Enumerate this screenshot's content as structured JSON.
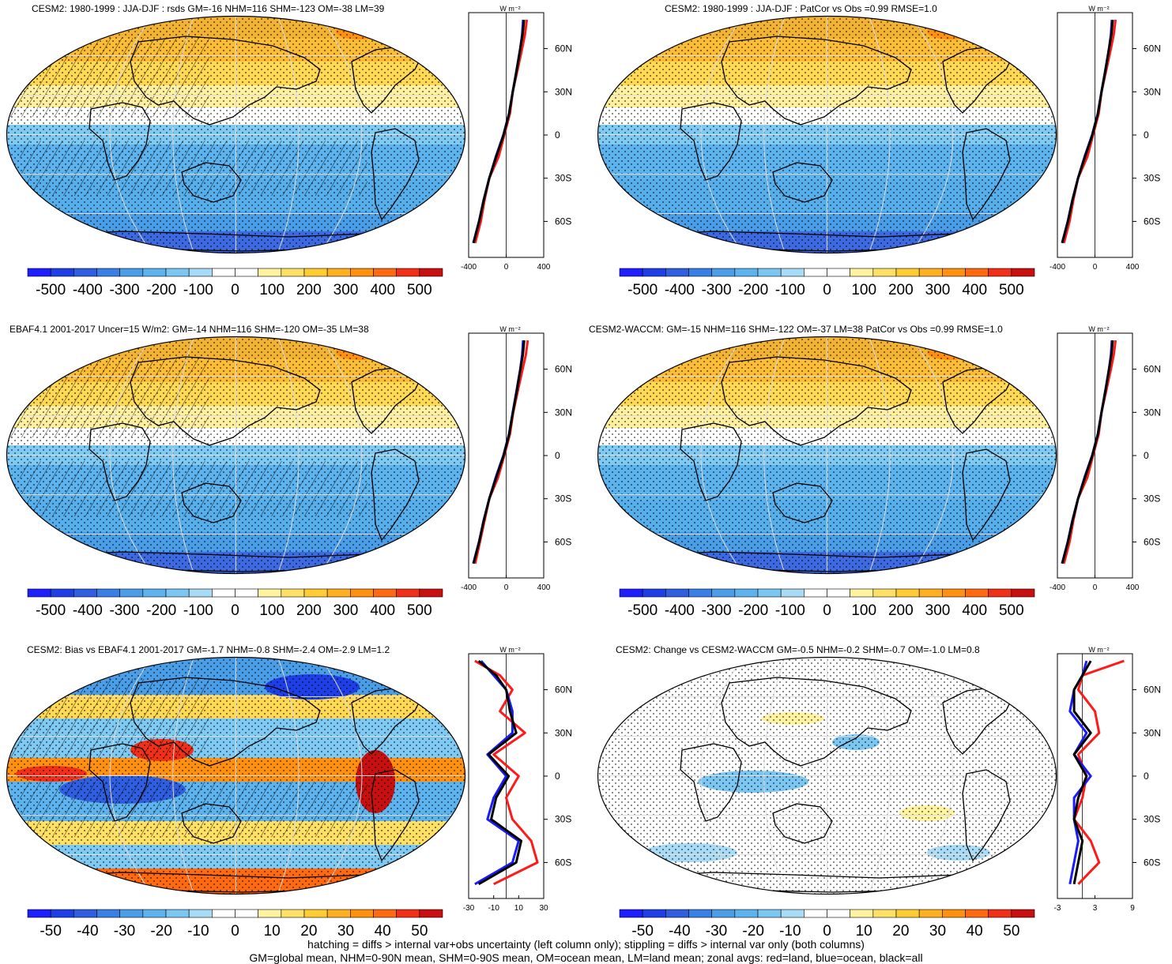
{
  "footer": {
    "line1": "hatching = diffs > internal var+obs uncertainty (left column only); stippling = diffs > internal var only (both columns)",
    "line2": "GM=global mean, NHM=0-90N mean, SHM=0-90S mean, OM=ocean mean, LM=land mean; zonal avgs: red=land, blue=ocean, black=all"
  },
  "colors": {
    "land_line": "#ff1a1a",
    "ocean_line": "#1a1aff",
    "all_line": "#000000",
    "scale": [
      "#1e1eff",
      "#1f3fe6",
      "#2f5fe0",
      "#3a7fe6",
      "#4a9ee8",
      "#5cb3ee",
      "#7cc6f2",
      "#a8dcf6",
      "#ffffff",
      "#ffffff",
      "#fff3a0",
      "#ffe066",
      "#ffcc33",
      "#ffb020",
      "#ff9010",
      "#ff6a10",
      "#f03018",
      "#c81010"
    ]
  },
  "panels": [
    {
      "title": "CESM2: 1980-1999 : JJA-DJF : rsds GM=-16 NHM=116 SHM=-123 OM=-38 LM=39",
      "unit": "W m⁻²",
      "colorbar_labels": [
        "-500",
        "-400",
        "-300",
        "-200",
        "-100",
        "0",
        "100",
        "200",
        "300",
        "400",
        "500"
      ],
      "zonal_xticks": [
        "-400",
        "0",
        "400"
      ],
      "lat_labels": [
        "60N",
        "30N",
        "0",
        "30S",
        "60S"
      ]
    },
    {
      "title": "CESM2: 1980-1999 : JJA-DJF : PatCor vs Obs =0.99 RMSE=1.0",
      "unit": "W m⁻²",
      "colorbar_labels": [
        "-500",
        "-400",
        "-300",
        "-200",
        "-100",
        "0",
        "100",
        "200",
        "300",
        "400",
        "500"
      ],
      "zonal_xticks": [
        "-400",
        "0",
        "400"
      ],
      "lat_labels": [
        "60N",
        "30N",
        "0",
        "30S",
        "60S"
      ]
    },
    {
      "title": "EBAF4.1 2001-2017 Uncer=15 W/m2: GM=-14 NHM=116 SHM=-120 OM=-35 LM=38",
      "unit": "W m⁻²",
      "colorbar_labels": [
        "-500",
        "-400",
        "-300",
        "-200",
        "-100",
        "0",
        "100",
        "200",
        "300",
        "400",
        "500"
      ],
      "zonal_xticks": [
        "-400",
        "0",
        "400"
      ],
      "lat_labels": [
        "60N",
        "30N",
        "0",
        "30S",
        "60S"
      ]
    },
    {
      "title": "CESM2-WACCM: GM=-15 NHM=116 SHM=-122 OM=-37 LM=38 PatCor vs Obs =0.99 RMSE=1.0",
      "unit": "W m⁻²",
      "colorbar_labels": [
        "-500",
        "-400",
        "-300",
        "-200",
        "-100",
        "0",
        "100",
        "200",
        "300",
        "400",
        "500"
      ],
      "zonal_xticks": [
        "-400",
        "0",
        "400"
      ],
      "lat_labels": [
        "60N",
        "30N",
        "0",
        "30S",
        "60S"
      ]
    },
    {
      "title": "CESM2: Bias vs EBAF4.1 2001-2017 GM=-1.7 NHM=-0.8 SHM=-2.4 OM=-2.9 LM=1.2",
      "unit": "W m⁻²",
      "colorbar_labels": [
        "-50",
        "-40",
        "-30",
        "-20",
        "-10",
        "0",
        "10",
        "20",
        "30",
        "40",
        "50"
      ],
      "zonal_xticks": [
        "-30",
        "-10",
        "10",
        "30"
      ],
      "lat_labels": [
        "60N",
        "30N",
        "0",
        "30S",
        "60S"
      ]
    },
    {
      "title": "CESM2: Change vs CESM2-WACCM GM=-0.5 NHM=-0.2 SHM=-0.7 OM=-1.0 LM=0.8",
      "unit": "W m⁻²",
      "colorbar_labels": [
        "-50",
        "-40",
        "-30",
        "-20",
        "-10",
        "0",
        "10",
        "20",
        "30",
        "40",
        "50"
      ],
      "zonal_xticks": [
        "-3",
        "3",
        "9"
      ],
      "lat_labels": [
        "60N",
        "30N",
        "0",
        "30S",
        "60S"
      ]
    }
  ],
  "chart_data": [
    {
      "type": "heatmap",
      "title": "CESM2: 1980-1999 : JJA-DJF : rsds GM=-16 NHM=116 SHM=-123 OM=-38 LM=39",
      "colorbar_range": [
        -500,
        500
      ],
      "zonal_profile": {
        "lat": [
          80,
          70,
          60,
          45,
          30,
          15,
          0,
          -15,
          -30,
          -45,
          -60,
          -75
        ],
        "land": [
          220,
          200,
          170,
          120,
          70,
          40,
          -20,
          -80,
          -180,
          -230,
          -270,
          -330
        ],
        "ocean": [
          180,
          170,
          150,
          110,
          70,
          30,
          -30,
          -110,
          -180,
          -240,
          -290,
          -350
        ],
        "all": [
          190,
          175,
          150,
          112,
          70,
          32,
          -28,
          -105,
          -180,
          -238,
          -288,
          -348
        ]
      }
    },
    {
      "type": "heatmap",
      "title": "CESM2: 1980-1999 : JJA-DJF : PatCor vs Obs =0.99 RMSE=1.0",
      "colorbar_range": [
        -500,
        500
      ],
      "zonal_profile": {
        "lat": [
          80,
          70,
          60,
          45,
          30,
          15,
          0,
          -15,
          -30,
          -45,
          -60,
          -75
        ],
        "land": [
          220,
          200,
          170,
          120,
          70,
          40,
          -20,
          -80,
          -180,
          -230,
          -270,
          -330
        ],
        "ocean": [
          180,
          170,
          150,
          110,
          70,
          30,
          -30,
          -110,
          -180,
          -240,
          -290,
          -350
        ],
        "all": [
          190,
          175,
          150,
          112,
          70,
          32,
          -28,
          -105,
          -180,
          -238,
          -288,
          -348
        ]
      }
    },
    {
      "type": "heatmap",
      "title": "EBAF4.1 2001-2017 Uncer=15 W/m2: GM=-14 NHM=116 SHM=-120 OM=-35 LM=38",
      "colorbar_range": [
        -500,
        500
      ],
      "zonal_profile": {
        "lat": [
          80,
          70,
          60,
          45,
          30,
          15,
          0,
          -15,
          -30,
          -45,
          -60,
          -75
        ],
        "land": [
          230,
          210,
          175,
          125,
          75,
          40,
          -20,
          -85,
          -180,
          -230,
          -280,
          -330
        ],
        "ocean": [
          180,
          170,
          150,
          110,
          70,
          30,
          -30,
          -110,
          -180,
          -240,
          -290,
          -350
        ],
        "all": [
          192,
          178,
          152,
          114,
          72,
          33,
          -27,
          -104,
          -180,
          -238,
          -288,
          -348
        ]
      }
    },
    {
      "type": "heatmap",
      "title": "CESM2-WACCM: GM=-15 NHM=116 SHM=-122 OM=-37 LM=38 PatCor vs Obs =0.99 RMSE=1.0",
      "colorbar_range": [
        -500,
        500
      ],
      "zonal_profile": {
        "lat": [
          80,
          70,
          60,
          45,
          30,
          15,
          0,
          -15,
          -30,
          -45,
          -60,
          -75
        ],
        "land": [
          220,
          200,
          170,
          120,
          70,
          40,
          -20,
          -80,
          -180,
          -230,
          -270,
          -330
        ],
        "ocean": [
          180,
          170,
          150,
          110,
          70,
          30,
          -30,
          -110,
          -180,
          -240,
          -290,
          -350
        ],
        "all": [
          190,
          175,
          150,
          112,
          70,
          32,
          -28,
          -105,
          -180,
          -238,
          -288,
          -348
        ]
      }
    },
    {
      "type": "heatmap",
      "title": "CESM2: Bias vs EBAF4.1 2001-2017 GM=-1.7 NHM=-0.8 SHM=-2.4 OM=-2.9 LM=1.2",
      "colorbar_range": [
        -50,
        50
      ],
      "zonal_profile": {
        "lat": [
          80,
          70,
          60,
          45,
          30,
          15,
          0,
          -15,
          -30,
          -45,
          -60,
          -75
        ],
        "land": [
          -25,
          -5,
          5,
          -5,
          15,
          -10,
          10,
          0,
          5,
          20,
          25,
          -10
        ],
        "ocean": [
          -20,
          -10,
          0,
          5,
          5,
          -15,
          0,
          -10,
          -15,
          10,
          5,
          -25
        ],
        "all": [
          -22,
          -8,
          0,
          3,
          8,
          -14,
          2,
          -8,
          -12,
          12,
          8,
          -22
        ]
      }
    },
    {
      "type": "heatmap",
      "title": "CESM2: Change vs CESM2-WACCM GM=-0.5 NHM=-0.2 SHM=-0.7 OM=-1.0 LM=0.8",
      "colorbar_range": [
        -50,
        50
      ],
      "zonal_profile": {
        "lat": [
          80,
          70,
          60,
          45,
          30,
          15,
          0,
          -15,
          -30,
          -45,
          -60,
          -75
        ],
        "land": [
          10,
          0,
          -1,
          3,
          4,
          -1,
          1,
          0,
          -2,
          2,
          4,
          -1
        ],
        "ocean": [
          1,
          0,
          -2,
          -3,
          1,
          -2,
          2,
          -2,
          -2,
          -1,
          -2,
          -3
        ],
        "all": [
          2,
          0,
          -2,
          -2,
          2,
          -2,
          1,
          -1,
          -2,
          0,
          -1,
          -2
        ]
      }
    }
  ]
}
